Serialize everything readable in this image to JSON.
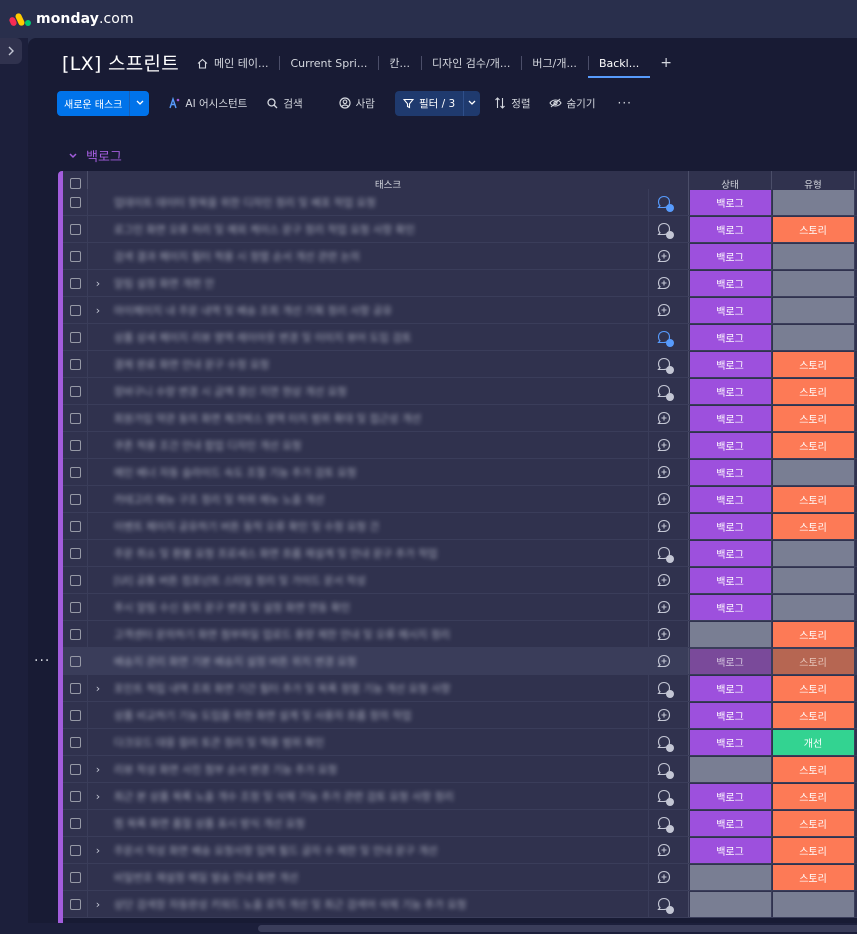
{
  "brand": {
    "name": "monday",
    "suffix": ".com",
    "dots": [
      "#f62b54",
      "#ffcc00",
      "#00ca72"
    ]
  },
  "board": {
    "title": "[LX] 스프린트",
    "tabs": [
      {
        "label": "메인 테이...",
        "icon": "home-icon",
        "active": false
      },
      {
        "label": "Current Spri...",
        "active": false
      },
      {
        "label": "칸...",
        "active": false
      },
      {
        "label": "디자인 검수/개...",
        "active": false
      },
      {
        "label": "버그/개...",
        "active": false
      },
      {
        "label": "Backl...",
        "active": true
      }
    ],
    "add_tab": "+"
  },
  "toolbar": {
    "new_task": "새로운 태스크",
    "ai": "AI 어시스턴트",
    "search": "검색",
    "person": "사람",
    "filter": "필터 / 3",
    "sort": "정렬",
    "hide": "숨기기",
    "more": "···"
  },
  "group": {
    "name": "백로그",
    "color": "#a25ddc"
  },
  "columns": {
    "task": "태스크",
    "status": "상태",
    "type": "유형"
  },
  "status_colors": {
    "백로그": "#9d50dd",
    "스토리": "#fd7a56",
    "개선": "#33d391"
  },
  "rows": [
    {
      "task": "업데이트 데이터 항목을 위한 디자인 정리 및 배포 작업 요청",
      "expand": false,
      "conv": "badge-blue",
      "status": "백로그",
      "type": ""
    },
    {
      "task": "로그인 화면 오류 처리 및 예외 케이스 문구 정리 작업 요청 사항 확인",
      "expand": false,
      "conv": "badge",
      "status": "백로그",
      "type": "스토리"
    },
    {
      "task": "검색 결과 페이지 필터 적용 시 정렬 순서 개선 관련 논의",
      "expand": false,
      "conv": "add",
      "status": "백로그",
      "type": ""
    },
    {
      "task": "알림 설정 화면 개편 안",
      "expand": true,
      "conv": "add",
      "status": "백로그",
      "type": ""
    },
    {
      "task": "마이페이지 내 주문 내역 및 배송 조회 개선 기획 정리 사항 공유",
      "expand": true,
      "conv": "add",
      "status": "백로그",
      "type": ""
    },
    {
      "task": "상품 상세 페이지 리뷰 영역 레이아웃 변경 및 이미지 뷰어 도입 검토",
      "expand": false,
      "conv": "badge-blue",
      "status": "백로그",
      "type": ""
    },
    {
      "task": "결제 완료 화면 안내 문구 수정 요청",
      "expand": false,
      "conv": "badge",
      "status": "백로그",
      "type": "스토리"
    },
    {
      "task": "장바구니 수량 변경 시 금액 갱신 지연 현상 개선 요청",
      "expand": false,
      "conv": "badge",
      "status": "백로그",
      "type": "스토리"
    },
    {
      "task": "회원가입 약관 동의 화면 체크박스 영역 터치 범위 확대 및 접근성 개선",
      "expand": false,
      "conv": "add",
      "status": "백로그",
      "type": "스토리"
    },
    {
      "task": "쿠폰 적용 조건 안내 팝업 디자인 개선 요청",
      "expand": false,
      "conv": "add",
      "status": "백로그",
      "type": "스토리"
    },
    {
      "task": "메인 배너 자동 슬라이드 속도 조절 기능 추가 검토 요청",
      "expand": false,
      "conv": "add",
      "status": "백로그",
      "type": ""
    },
    {
      "task": "카테고리 메뉴 구조 정리 및 하위 메뉴 노출 개선",
      "expand": false,
      "conv": "add",
      "status": "백로그",
      "type": "스토리"
    },
    {
      "task": "이벤트 페이지 공유하기 버튼 동작 오류 확인 및 수정 요청 건",
      "expand": false,
      "conv": "add",
      "status": "백로그",
      "type": "스토리"
    },
    {
      "task": "주문 취소 및 환불 요청 프로세스 화면 흐름 재설계 및 안내 문구 추가 작업",
      "expand": false,
      "conv": "badge",
      "status": "백로그",
      "type": ""
    },
    {
      "task": "[UI] 공통 버튼 컴포넌트 스타일 정리 및 가이드 문서 작성",
      "expand": false,
      "conv": "add",
      "status": "백로그",
      "type": ""
    },
    {
      "task": "푸시 알림 수신 동의 문구 변경 및 설정 화면 연동 확인",
      "expand": false,
      "conv": "add",
      "status": "백로그",
      "type": ""
    },
    {
      "task": "고객센터 문의하기 화면 첨부파일 업로드 용량 제한 안내 및 오류 메시지 정리",
      "expand": false,
      "conv": "add",
      "status": "",
      "type": "스토리"
    },
    {
      "task": "배송지 관리 화면 기본 배송지 설정 버튼 위치 변경 요청",
      "expand": false,
      "conv": "add",
      "status": "백로그",
      "type": "스토리",
      "hover": true
    },
    {
      "task": "포인트 적립 내역 조회 화면 기간 필터 추가 및 목록 정렬 기능 개선 요청 사항",
      "expand": true,
      "conv": "badge",
      "status": "백로그",
      "type": "스토리"
    },
    {
      "task": "상품 비교하기 기능 도입을 위한 화면 설계 및 사용자 흐름 정의 작업",
      "expand": false,
      "conv": "add",
      "status": "백로그",
      "type": "스토리"
    },
    {
      "task": "다크모드 대응 컬러 토큰 정리 및 적용 범위 확인",
      "expand": false,
      "conv": "badge",
      "status": "백로그",
      "type": "개선"
    },
    {
      "task": "리뷰 작성 화면 사진 첨부 순서 변경 기능 추가 요청",
      "expand": true,
      "conv": "badge",
      "status": "",
      "type": "스토리"
    },
    {
      "task": "최근 본 상품 목록 노출 개수 조정 및 삭제 기능 추가 관련 검토 요청 사항 정리",
      "expand": true,
      "conv": "badge",
      "status": "백로그",
      "type": "스토리"
    },
    {
      "task": "찜 목록 화면 품절 상품 표시 방식 개선 요청",
      "expand": false,
      "conv": "badge",
      "status": "백로그",
      "type": "스토리"
    },
    {
      "task": "주문서 작성 화면 배송 요청사항 입력 필드 글자 수 제한 및 안내 문구 개선",
      "expand": true,
      "conv": "add",
      "status": "백로그",
      "type": "스토리"
    },
    {
      "task": "비밀번호 재설정 메일 발송 안내 화면 개선",
      "expand": false,
      "conv": "add",
      "status": "",
      "type": "스토리"
    },
    {
      "task": "상단 검색창 자동완성 키워드 노출 로직 개선 및 최근 검색어 삭제 기능 추가 요청",
      "expand": true,
      "conv": "badge",
      "status": "",
      "type": ""
    }
  ]
}
